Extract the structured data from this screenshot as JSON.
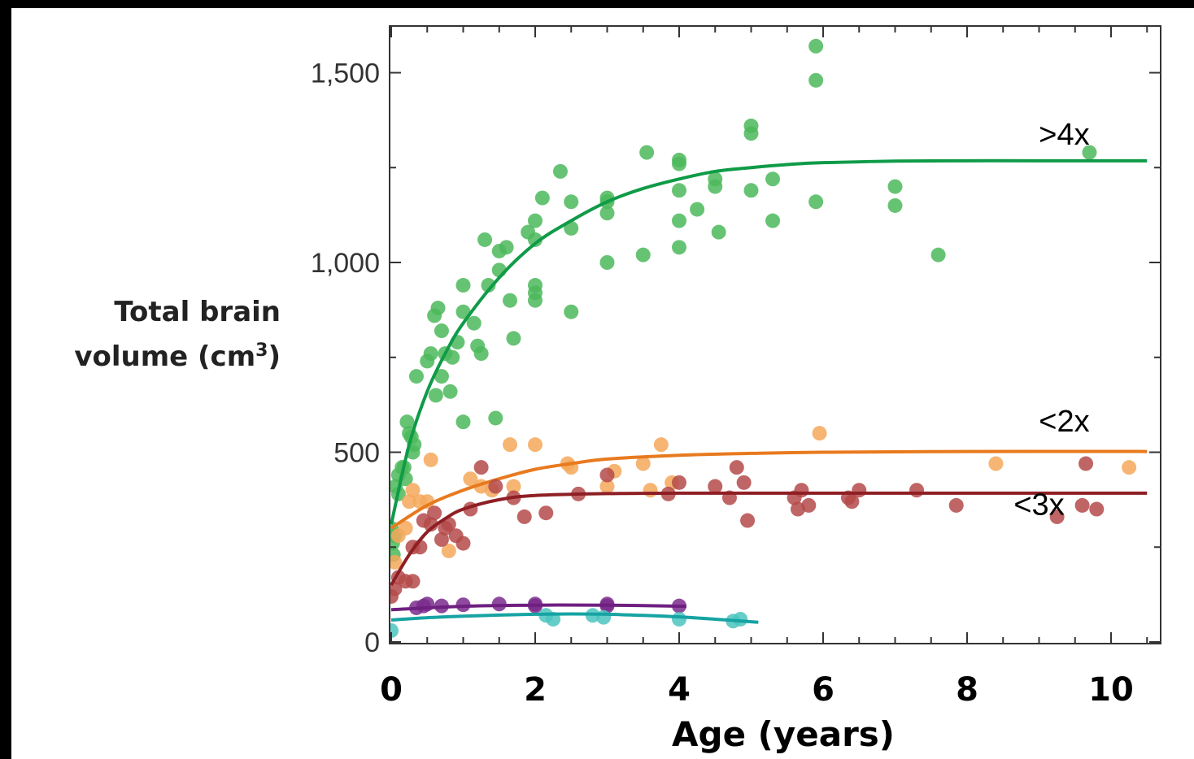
{
  "chart_data": {
    "type": "scatter",
    "title": "",
    "xlabel": "Age (years)",
    "ylabel_line1": "Total brain",
    "ylabel_line2": "volume (cm",
    "ylabel_sup": "3",
    "ylabel_close": ")",
    "xlim": [
      0,
      10.5
    ],
    "ylim": [
      0,
      1620
    ],
    "x_ticks": [
      0,
      2,
      4,
      6,
      8,
      10
    ],
    "x_tick_labels": [
      "0",
      "2",
      "4",
      "6",
      "8",
      "10"
    ],
    "y_ticks": [
      0,
      500,
      1000,
      1500
    ],
    "y_tick_labels": [
      "0",
      "500",
      "1,000",
      "1,500"
    ],
    "grid": false,
    "annotations": [
      {
        "text": ">4x",
        "x": 9.35,
        "y": 1310
      },
      {
        "text": "<2x",
        "x": 9.35,
        "y": 555
      },
      {
        "text": "<3x",
        "x": 9.0,
        "y": 335
      }
    ],
    "series": [
      {
        "color_point": "#4cb85c",
        "color_line": "#0f9b48",
        "points": [
          [
            0.0,
            300
          ],
          [
            0.02,
            260
          ],
          [
            0.03,
            230
          ],
          [
            0.05,
            280
          ],
          [
            0.06,
            410
          ],
          [
            0.1,
            440
          ],
          [
            0.1,
            390
          ],
          [
            0.15,
            460
          ],
          [
            0.18,
            460
          ],
          [
            0.2,
            430
          ],
          [
            0.22,
            580
          ],
          [
            0.25,
            550
          ],
          [
            0.28,
            540
          ],
          [
            0.3,
            500
          ],
          [
            0.32,
            520
          ],
          [
            0.35,
            700
          ],
          [
            0.5,
            740
          ],
          [
            0.55,
            760
          ],
          [
            0.6,
            860
          ],
          [
            0.65,
            880
          ],
          [
            0.7,
            820
          ],
          [
            0.7,
            700
          ],
          [
            0.62,
            650
          ],
          [
            0.75,
            760
          ],
          [
            0.82,
            660
          ],
          [
            0.85,
            750
          ],
          [
            0.92,
            790
          ],
          [
            1.0,
            940
          ],
          [
            1.0,
            870
          ],
          [
            1.0,
            580
          ],
          [
            1.15,
            840
          ],
          [
            1.2,
            780
          ],
          [
            1.25,
            760
          ],
          [
            1.3,
            1060
          ],
          [
            1.35,
            940
          ],
          [
            1.45,
            590
          ],
          [
            1.5,
            980
          ],
          [
            1.5,
            1030
          ],
          [
            1.6,
            1040
          ],
          [
            1.65,
            900
          ],
          [
            1.7,
            800
          ],
          [
            1.9,
            1080
          ],
          [
            2.0,
            1110
          ],
          [
            2.0,
            1060
          ],
          [
            2.0,
            940
          ],
          [
            2.0,
            920
          ],
          [
            2.0,
            900
          ],
          [
            2.1,
            1170
          ],
          [
            2.35,
            1240
          ],
          [
            2.5,
            1160
          ],
          [
            2.5,
            1090
          ],
          [
            2.5,
            870
          ],
          [
            3.0,
            1170
          ],
          [
            3.0,
            1160
          ],
          [
            3.0,
            1130
          ],
          [
            3.0,
            1000
          ],
          [
            3.5,
            1020
          ],
          [
            3.55,
            1290
          ],
          [
            4.0,
            1270
          ],
          [
            4.0,
            1260
          ],
          [
            4.0,
            1190
          ],
          [
            4.0,
            1110
          ],
          [
            4.0,
            1040
          ],
          [
            4.25,
            1140
          ],
          [
            4.5,
            1220
          ],
          [
            4.5,
            1200
          ],
          [
            4.55,
            1080
          ],
          [
            5.0,
            1360
          ],
          [
            5.0,
            1340
          ],
          [
            5.0,
            1190
          ],
          [
            5.3,
            1220
          ],
          [
            5.3,
            1110
          ],
          [
            5.9,
            1570
          ],
          [
            5.9,
            1480
          ],
          [
            5.9,
            1160
          ],
          [
            7.0,
            1200
          ],
          [
            7.0,
            1150
          ],
          [
            7.6,
            1020
          ],
          [
            9.7,
            1290
          ]
        ],
        "curve": [
          [
            0.0,
            310
          ],
          [
            0.25,
            520
          ],
          [
            0.5,
            660
          ],
          [
            0.75,
            760
          ],
          [
            1.0,
            840
          ],
          [
            1.5,
            960
          ],
          [
            2.0,
            1050
          ],
          [
            2.5,
            1110
          ],
          [
            3.0,
            1160
          ],
          [
            3.5,
            1195
          ],
          [
            4.0,
            1220
          ],
          [
            4.5,
            1240
          ],
          [
            5.0,
            1250
          ],
          [
            5.5,
            1258
          ],
          [
            6.0,
            1263
          ],
          [
            7.0,
            1267
          ],
          [
            8.0,
            1268
          ],
          [
            9.0,
            1268
          ],
          [
            10.5,
            1268
          ]
        ]
      },
      {
        "color_point": "#f5a85a",
        "color_line": "#e87a1e",
        "points": [
          [
            0.05,
            210
          ],
          [
            0.1,
            280
          ],
          [
            0.2,
            300
          ],
          [
            0.25,
            370
          ],
          [
            0.3,
            400
          ],
          [
            0.4,
            370
          ],
          [
            0.5,
            370
          ],
          [
            0.55,
            480
          ],
          [
            0.8,
            240
          ],
          [
            1.1,
            430
          ],
          [
            1.25,
            410
          ],
          [
            1.4,
            400
          ],
          [
            1.65,
            520
          ],
          [
            1.7,
            410
          ],
          [
            2.0,
            520
          ],
          [
            2.45,
            470
          ],
          [
            2.5,
            460
          ],
          [
            3.0,
            410
          ],
          [
            3.1,
            450
          ],
          [
            3.5,
            470
          ],
          [
            3.6,
            400
          ],
          [
            3.75,
            520
          ],
          [
            3.9,
            420
          ],
          [
            5.95,
            550
          ],
          [
            8.4,
            470
          ],
          [
            10.25,
            460
          ]
        ],
        "curve": [
          [
            0.0,
            300
          ],
          [
            0.5,
            360
          ],
          [
            1.0,
            400
          ],
          [
            1.5,
            430
          ],
          [
            2.0,
            455
          ],
          [
            2.5,
            470
          ],
          [
            3.0,
            482
          ],
          [
            4.0,
            492
          ],
          [
            5.0,
            497
          ],
          [
            6.0,
            500
          ],
          [
            8.0,
            502
          ],
          [
            10.5,
            502
          ]
        ]
      },
      {
        "color_point": "#b44a4a",
        "color_line": "#8e1f24",
        "points": [
          [
            0.0,
            120
          ],
          [
            0.05,
            140
          ],
          [
            0.1,
            170
          ],
          [
            0.2,
            160
          ],
          [
            0.3,
            160
          ],
          [
            0.3,
            250
          ],
          [
            0.4,
            250
          ],
          [
            0.45,
            320
          ],
          [
            0.55,
            310
          ],
          [
            0.6,
            340
          ],
          [
            0.7,
            270
          ],
          [
            0.75,
            300
          ],
          [
            0.8,
            310
          ],
          [
            0.9,
            280
          ],
          [
            1.0,
            260
          ],
          [
            1.1,
            350
          ],
          [
            1.25,
            460
          ],
          [
            1.45,
            410
          ],
          [
            1.7,
            380
          ],
          [
            1.85,
            330
          ],
          [
            2.15,
            340
          ],
          [
            2.6,
            390
          ],
          [
            3.0,
            440
          ],
          [
            3.85,
            390
          ],
          [
            4.0,
            420
          ],
          [
            4.5,
            410
          ],
          [
            4.7,
            380
          ],
          [
            4.8,
            460
          ],
          [
            4.9,
            420
          ],
          [
            4.95,
            320
          ],
          [
            5.6,
            380
          ],
          [
            5.65,
            350
          ],
          [
            5.7,
            400
          ],
          [
            5.8,
            360
          ],
          [
            6.35,
            380
          ],
          [
            6.4,
            370
          ],
          [
            6.5,
            400
          ],
          [
            7.3,
            400
          ],
          [
            7.85,
            360
          ],
          [
            9.25,
            330
          ],
          [
            9.6,
            360
          ],
          [
            9.65,
            470
          ],
          [
            9.8,
            350
          ]
        ],
        "curve": [
          [
            0.0,
            150
          ],
          [
            0.25,
            230
          ],
          [
            0.5,
            290
          ],
          [
            0.75,
            325
          ],
          [
            1.0,
            350
          ],
          [
            1.5,
            375
          ],
          [
            2.0,
            386
          ],
          [
            3.0,
            391
          ],
          [
            4.0,
            392
          ],
          [
            6.0,
            392
          ],
          [
            8.0,
            392
          ],
          [
            10.5,
            392
          ]
        ]
      },
      {
        "color_point": "#7a2b8c",
        "color_line": "#6e1f80",
        "points": [
          [
            0.35,
            90
          ],
          [
            0.45,
            95
          ],
          [
            0.5,
            100
          ],
          [
            0.7,
            95
          ],
          [
            1.0,
            98
          ],
          [
            1.5,
            100
          ],
          [
            2.0,
            100
          ],
          [
            2.0,
            95
          ],
          [
            3.0,
            100
          ],
          [
            3.0,
            95
          ],
          [
            4.0,
            95
          ]
        ],
        "curve": [
          [
            0.0,
            85
          ],
          [
            1.0,
            94
          ],
          [
            2.0,
            97
          ],
          [
            3.0,
            97
          ],
          [
            4.1,
            94
          ]
        ]
      },
      {
        "color_point": "#4cc4c0",
        "color_line": "#16a3a3",
        "points": [
          [
            0.0,
            30
          ],
          [
            2.15,
            70
          ],
          [
            2.25,
            60
          ],
          [
            2.8,
            70
          ],
          [
            2.95,
            65
          ],
          [
            4.0,
            60
          ],
          [
            4.75,
            55
          ],
          [
            4.85,
            60
          ]
        ],
        "curve": [
          [
            0.0,
            58
          ],
          [
            0.5,
            64
          ],
          [
            1.0,
            68
          ],
          [
            1.5,
            71
          ],
          [
            2.0,
            73
          ],
          [
            2.5,
            74
          ],
          [
            3.0,
            73
          ],
          [
            3.5,
            70
          ],
          [
            4.0,
            66
          ],
          [
            4.5,
            60
          ],
          [
            5.1,
            52
          ]
        ]
      }
    ]
  }
}
